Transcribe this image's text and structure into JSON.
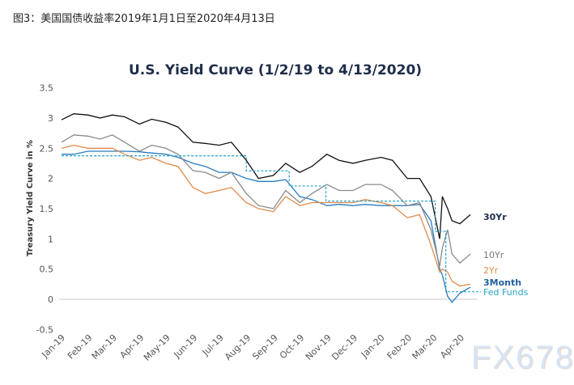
{
  "caption": "图3：美国国债收益率2019年1月1日至2020年4月13日",
  "watermark": "FX678",
  "chart_data": {
    "type": "line",
    "title": "U.S. Yield Curve (1/2/19 to 4/13/2020)",
    "ylabel": "Treasury Yield Curve in %",
    "xlabel": "",
    "ylim": [
      -0.5,
      3.5
    ],
    "yticks": [
      "3.5",
      "3",
      "2.5",
      "2",
      "1.5",
      "1",
      "0.5",
      "0",
      "-0.5"
    ],
    "xticks": [
      "Jan-19",
      "Feb-19",
      "Mar-19",
      "Apr-19",
      "May-19",
      "Jun-19",
      "Jul-19",
      "Aug-19",
      "Sep-19",
      "Oct-19",
      "Nov-19",
      "Dec-19",
      "Jan-20",
      "Feb-20",
      "Mar-20",
      "Apr-20"
    ],
    "grid": false,
    "legend": "right, labels at line ends",
    "x": [
      "2019-01-02",
      "2019-01-16",
      "2019-02-01",
      "2019-02-15",
      "2019-03-01",
      "2019-03-15",
      "2019-04-01",
      "2019-04-15",
      "2019-05-01",
      "2019-05-15",
      "2019-06-01",
      "2019-06-15",
      "2019-07-01",
      "2019-07-15",
      "2019-08-01",
      "2019-08-15",
      "2019-09-01",
      "2019-09-15",
      "2019-10-01",
      "2019-10-15",
      "2019-11-01",
      "2019-11-15",
      "2019-12-01",
      "2019-12-15",
      "2020-01-02",
      "2020-01-15",
      "2020-02-01",
      "2020-02-15",
      "2020-02-28",
      "2020-03-09",
      "2020-03-12",
      "2020-03-18",
      "2020-03-23",
      "2020-04-01",
      "2020-04-13"
    ],
    "series": [
      {
        "name": "30Yr",
        "color": "#111111",
        "values": [
          2.97,
          3.07,
          3.05,
          3.0,
          3.05,
          3.02,
          2.9,
          2.98,
          2.93,
          2.85,
          2.6,
          2.58,
          2.55,
          2.6,
          2.3,
          2.0,
          2.05,
          2.25,
          2.1,
          2.2,
          2.4,
          2.3,
          2.25,
          2.3,
          2.35,
          2.3,
          2.0,
          2.0,
          1.7,
          1.0,
          1.7,
          1.5,
          1.3,
          1.25,
          1.4
        ]
      },
      {
        "name": "10Yr",
        "color": "#8a8a8a",
        "values": [
          2.6,
          2.72,
          2.7,
          2.65,
          2.72,
          2.6,
          2.45,
          2.55,
          2.5,
          2.4,
          2.13,
          2.1,
          2.0,
          2.1,
          1.75,
          1.55,
          1.5,
          1.8,
          1.6,
          1.75,
          1.9,
          1.8,
          1.8,
          1.9,
          1.9,
          1.8,
          1.55,
          1.6,
          1.15,
          0.55,
          0.85,
          1.15,
          0.75,
          0.6,
          0.75
        ]
      },
      {
        "name": "2Yr",
        "color": "#e08a4a",
        "values": [
          2.5,
          2.55,
          2.5,
          2.5,
          2.5,
          2.4,
          2.3,
          2.35,
          2.25,
          2.2,
          1.85,
          1.75,
          1.8,
          1.85,
          1.6,
          1.5,
          1.45,
          1.7,
          1.55,
          1.6,
          1.6,
          1.6,
          1.6,
          1.65,
          1.6,
          1.55,
          1.35,
          1.4,
          0.9,
          0.45,
          0.5,
          0.45,
          0.3,
          0.22,
          0.25
        ]
      },
      {
        "name": "3Month",
        "color": "#2a7bbf",
        "values": [
          2.4,
          2.4,
          2.45,
          2.45,
          2.45,
          2.45,
          2.44,
          2.42,
          2.4,
          2.35,
          2.25,
          2.2,
          2.1,
          2.1,
          2.0,
          1.95,
          1.95,
          1.98,
          1.7,
          1.65,
          1.55,
          1.57,
          1.55,
          1.57,
          1.55,
          1.55,
          1.55,
          1.57,
          1.3,
          0.5,
          0.4,
          0.05,
          -0.05,
          0.1,
          0.2
        ]
      }
    ],
    "fed_funds": {
      "name": "Fed Funds",
      "color": "#29a3c9",
      "style": "dashed step",
      "steps": [
        {
          "from": "2019-01-02",
          "value": 2.375
        },
        {
          "from": "2019-08-01",
          "value": 2.125
        },
        {
          "from": "2019-09-19",
          "value": 1.875
        },
        {
          "from": "2019-10-31",
          "value": 1.625
        },
        {
          "from": "2020-03-04",
          "value": 1.125
        },
        {
          "from": "2020-03-16",
          "value": 0.125
        }
      ],
      "end": "2020-04-25"
    }
  }
}
